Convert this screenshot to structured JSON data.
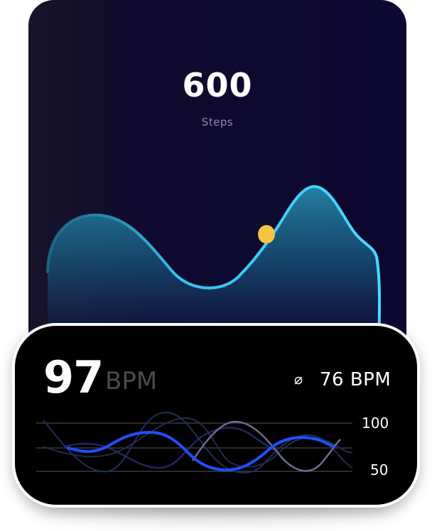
{
  "steps_card": {
    "value": "600",
    "label": "Steps",
    "accent_color": "#39d4f7",
    "marker_color": "#f5c542"
  },
  "heart_rate_card": {
    "bpm_value": "97",
    "bpm_unit": "BPM",
    "average_symbol": "⌀",
    "average_value": "76 BPM",
    "axis_top": "100",
    "axis_bottom": "50",
    "accent_color": "#1f4fff"
  }
}
